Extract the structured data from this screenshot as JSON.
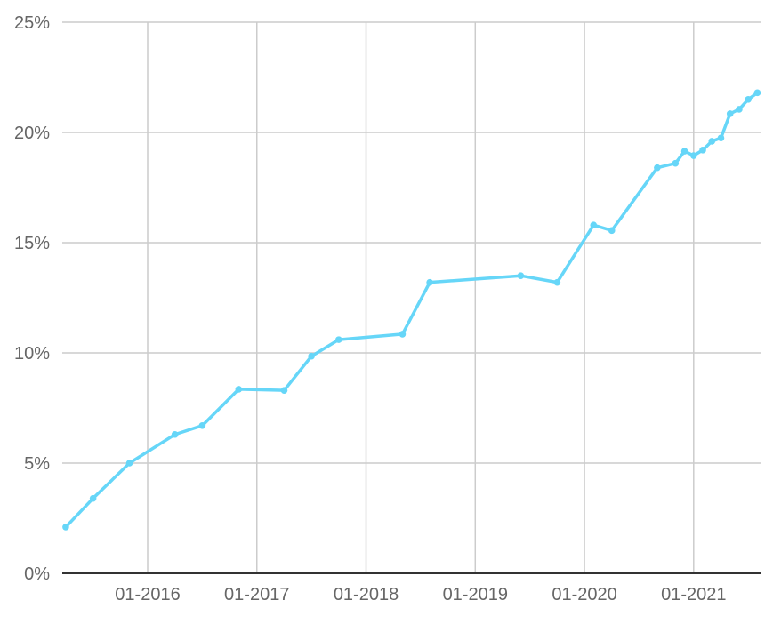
{
  "chart_data": {
    "type": "line",
    "title": "",
    "xlabel": "",
    "ylabel": "",
    "ylim": [
      0,
      25
    ],
    "yticks": [
      0,
      5,
      10,
      15,
      20,
      25
    ],
    "ytick_labels": [
      "0%",
      "5%",
      "10%",
      "15%",
      "20%",
      "25%"
    ],
    "xticks": [
      "2016-01",
      "2017-01",
      "2018-01",
      "2019-01",
      "2020-01",
      "2021-01"
    ],
    "xtick_labels": [
      "01-2016",
      "01-2017",
      "01-2018",
      "01-2019",
      "01-2020",
      "01-2021"
    ],
    "grid": true,
    "legend": "none",
    "series": [
      {
        "color": "#66d6f8",
        "x": [
          "2015-04",
          "2015-07",
          "2015-11",
          "2016-04",
          "2016-07",
          "2016-11",
          "2017-04",
          "2017-07",
          "2017-10",
          "2018-05",
          "2018-08",
          "2019-06",
          "2019-10",
          "2020-02",
          "2020-04",
          "2020-09",
          "2020-11",
          "2020-12",
          "2021-01",
          "2021-02",
          "2021-03",
          "2021-04",
          "2021-05",
          "2021-06",
          "2021-07",
          "2021-08"
        ],
        "y": [
          2.1,
          3.4,
          5.0,
          6.3,
          6.7,
          8.35,
          8.3,
          9.85,
          10.6,
          10.85,
          13.2,
          13.5,
          13.2,
          15.8,
          15.55,
          18.4,
          18.6,
          19.15,
          18.95,
          19.2,
          19.6,
          19.75,
          20.85,
          21.05,
          21.5,
          21.8
        ]
      }
    ]
  }
}
